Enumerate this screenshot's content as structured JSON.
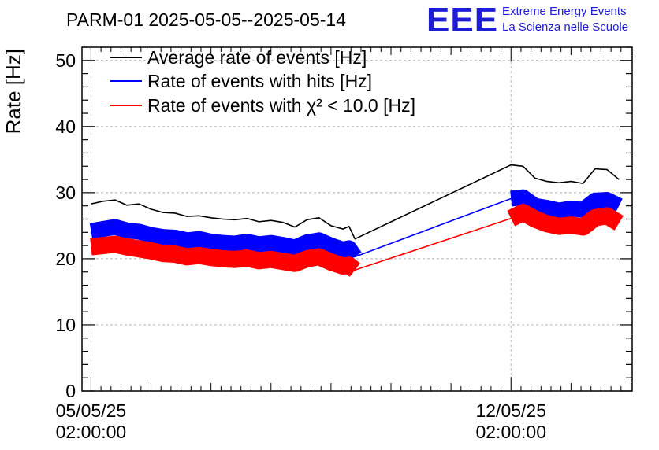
{
  "header": {
    "title": "PARM-01 2025-05-05--2025-05-14",
    "logo_mark": "EEE",
    "logo_line1": "Extreme Energy Events",
    "logo_line2": "La Scienza nelle Scuole",
    "logo_color": "#1d1dd8"
  },
  "chart_data": {
    "type": "line",
    "title": "PARM-01 2025-05-05--2025-05-14",
    "ylabel": "Rate [Hz]",
    "xlabel": "",
    "ylim": [
      0,
      52
    ],
    "xlim": [
      -0.15,
      9.02
    ],
    "yticks": [
      "0",
      "10",
      "20",
      "30",
      "40",
      "50"
    ],
    "xticks": [
      {
        "pos": 0,
        "line1": "05/05/25",
        "line2": "02:00:00"
      },
      {
        "pos": 7,
        "line1": "12/05/25",
        "line2": "02:00:00"
      }
    ],
    "grid": true,
    "legend_position": "top-left",
    "x_unit": "days since 05/05/25 02:00:00",
    "series": [
      {
        "name": "Average rate of events [Hz]",
        "color": "#000000",
        "band": 0,
        "x": [
          0.0,
          0.2,
          0.4,
          0.6,
          0.8,
          1.0,
          1.2,
          1.4,
          1.6,
          1.8,
          2.0,
          2.2,
          2.4,
          2.6,
          2.8,
          3.0,
          3.2,
          3.4,
          3.6,
          3.8,
          4.0,
          4.2,
          4.3,
          4.4,
          7.0,
          7.2,
          7.4,
          7.6,
          7.8,
          8.0,
          8.2,
          8.4,
          8.6,
          8.8
        ],
        "y": [
          28.3,
          28.7,
          28.9,
          28.1,
          28.3,
          27.5,
          27.0,
          26.9,
          26.4,
          26.5,
          26.2,
          26.0,
          25.9,
          26.1,
          25.6,
          25.8,
          25.5,
          24.8,
          25.9,
          26.2,
          25.0,
          24.5,
          24.9,
          23.0,
          34.2,
          34.0,
          32.2,
          31.7,
          31.5,
          31.7,
          31.4,
          33.6,
          33.5,
          32.0
        ]
      },
      {
        "name": "Rate of events with hits [Hz]",
        "color": "#0000ff",
        "band": 1.2,
        "x": [
          0.0,
          0.2,
          0.4,
          0.6,
          0.8,
          1.0,
          1.2,
          1.4,
          1.6,
          1.8,
          2.0,
          2.2,
          2.4,
          2.6,
          2.8,
          3.0,
          3.2,
          3.4,
          3.6,
          3.8,
          4.0,
          4.2,
          4.3,
          4.4,
          7.0,
          7.2,
          7.4,
          7.6,
          7.8,
          8.0,
          8.2,
          8.4,
          8.6,
          8.8
        ],
        "y": [
          24.2,
          24.5,
          24.8,
          24.3,
          24.1,
          23.6,
          23.3,
          23.2,
          22.8,
          23.0,
          22.6,
          22.4,
          22.3,
          22.6,
          22.2,
          22.4,
          22.1,
          21.7,
          22.5,
          22.8,
          22.0,
          21.4,
          21.6,
          20.3,
          29.1,
          29.3,
          28.0,
          27.7,
          27.3,
          27.6,
          27.4,
          28.8,
          28.9,
          28.0
        ]
      },
      {
        "name": "Rate of events with χ² < 10.0 [Hz]",
        "color": "#ff0000",
        "band": 1.3,
        "x": [
          0.0,
          0.2,
          0.4,
          0.6,
          0.8,
          1.0,
          1.2,
          1.4,
          1.6,
          1.8,
          2.0,
          2.2,
          2.4,
          2.6,
          2.8,
          3.0,
          3.2,
          3.4,
          3.6,
          3.8,
          4.0,
          4.2,
          4.3,
          4.4,
          7.0,
          7.2,
          7.4,
          7.6,
          7.8,
          8.0,
          8.2,
          8.4,
          8.6,
          8.8
        ],
        "y": [
          21.8,
          22.0,
          22.2,
          21.8,
          21.5,
          21.2,
          20.8,
          20.7,
          20.3,
          20.5,
          20.2,
          20.0,
          19.9,
          20.1,
          19.7,
          19.9,
          19.6,
          19.3,
          20.0,
          20.3,
          19.5,
          18.9,
          19.0,
          18.3,
          26.1,
          27.0,
          26.0,
          25.3,
          24.9,
          25.1,
          24.8,
          26.2,
          26.5,
          25.4
        ]
      }
    ]
  }
}
